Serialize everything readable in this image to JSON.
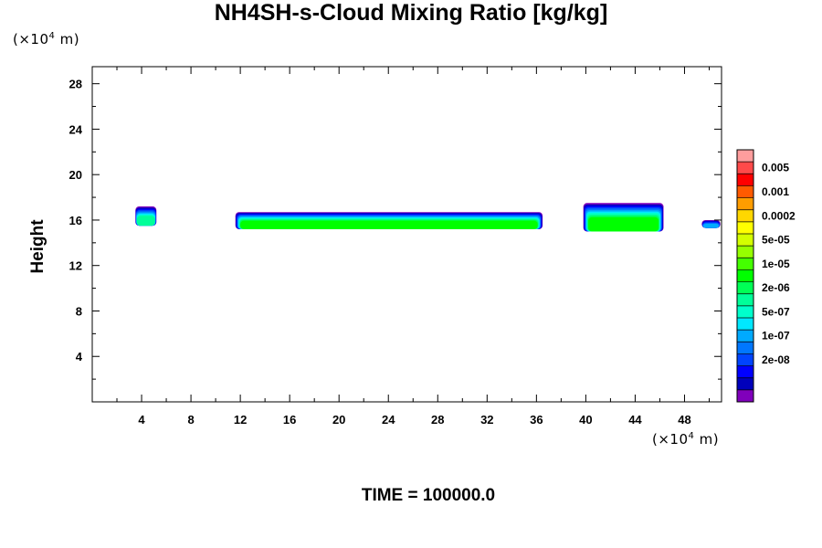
{
  "title": "NH4SH-s-Cloud Mixing Ratio [kg/kg]",
  "y_unit_prefix": "(×10",
  "y_unit_exp": "4",
  "y_unit_suffix": " m)",
  "x_unit_prefix": "(×10",
  "x_unit_exp": "4",
  "x_unit_suffix": " m)",
  "time_label": "TIME = 100000.0",
  "chart_data": {
    "type": "heatmap",
    "title": "NH4SH-s-Cloud Mixing Ratio [kg/kg]",
    "ylabel": "Height",
    "xlabel": "",
    "xlim": [
      0,
      51
    ],
    "ylim": [
      0,
      29.5
    ],
    "x_ticks": [
      "4",
      "8",
      "12",
      "16",
      "20",
      "24",
      "28",
      "32",
      "36",
      "40",
      "44",
      "48"
    ],
    "x_tick_values": [
      4,
      8,
      12,
      16,
      20,
      24,
      28,
      32,
      36,
      40,
      44,
      48
    ],
    "y_ticks": [
      "4",
      "8",
      "12",
      "16",
      "20",
      "24",
      "28"
    ],
    "y_tick_values": [
      4,
      8,
      12,
      16,
      20,
      24,
      28
    ],
    "colorbar": {
      "colors": [
        "#ff9d9d",
        "#ff4a4a",
        "#ff0000",
        "#ff5a00",
        "#ff9d00",
        "#ffd700",
        "#ffff00",
        "#d4ff00",
        "#96ff00",
        "#44ff00",
        "#00ff00",
        "#00ff55",
        "#00ff99",
        "#00ffcc",
        "#00e8ff",
        "#00aaff",
        "#0077ff",
        "#0044ff",
        "#0000ff",
        "#0000bb",
        "#8000bb"
      ],
      "labels": [
        "0.005",
        "0.001",
        "0.0002",
        "5e-05",
        "1e-05",
        "2e-06",
        "5e-07",
        "1e-07",
        "2e-08"
      ]
    },
    "cloud_regions": [
      {
        "x_start": 3.5,
        "x_end": 5.2,
        "y_bottom": 15.5,
        "y_top": 17.2,
        "max_level": "2e-06"
      },
      {
        "x_start": 11.6,
        "x_end": 36.5,
        "y_bottom": 15.2,
        "y_top": 16.7,
        "max_level": "1e-05"
      },
      {
        "x_start": 39.8,
        "x_end": 46.3,
        "y_bottom": 15.0,
        "y_top": 17.5,
        "max_level": "1e-05"
      },
      {
        "x_start": 49.4,
        "x_end": 50.9,
        "y_bottom": 15.3,
        "y_top": 16.0,
        "max_level": "5e-07"
      }
    ]
  }
}
